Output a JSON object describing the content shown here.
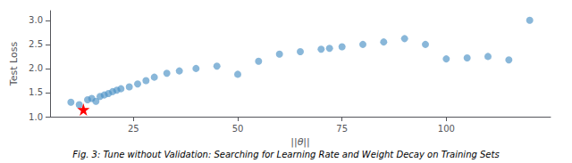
{
  "chart_data": {
    "type": "scatter",
    "caption": "Fig. 3: Tune without Validation: Searching for Learning Rate and Weight Decay on Training Sets",
    "xlabel": "||θ||",
    "ylabel": "Test Loss",
    "xlim": [
      5,
      125
    ],
    "ylim": [
      1.0,
      3.2
    ],
    "xticks": [
      25,
      50,
      75,
      100
    ],
    "yticks": [
      {
        "value": 1.0,
        "label": "1.0"
      },
      1.5,
      {
        "value": 2.0,
        "label": "2.0"
      },
      2.5,
      {
        "value": 3.0,
        "label": "3.0"
      }
    ],
    "grid": false,
    "series": [
      {
        "x": [
          10,
          12,
          14,
          15,
          16,
          17,
          18,
          19,
          20,
          21,
          22,
          24,
          26,
          28,
          30,
          33,
          36,
          40,
          45,
          50,
          55,
          60,
          65,
          70,
          72,
          75,
          80,
          85,
          90,
          95,
          100,
          105,
          110,
          115,
          120
        ],
        "values": [
          1.3,
          1.25,
          1.35,
          1.38,
          1.32,
          1.42,
          1.45,
          1.48,
          1.52,
          1.55,
          1.58,
          1.62,
          1.68,
          1.75,
          1.82,
          1.9,
          1.95,
          2.0,
          2.05,
          1.88,
          2.15,
          2.3,
          2.35,
          2.4,
          2.42,
          2.45,
          2.5,
          2.55,
          2.62,
          2.5,
          2.2,
          2.22,
          2.25,
          2.18,
          3.0
        ],
        "color": "#4a90c4",
        "marker": "circle"
      },
      {
        "x": [
          13
        ],
        "values": [
          1.15
        ],
        "color": "red",
        "marker": "star"
      }
    ]
  }
}
